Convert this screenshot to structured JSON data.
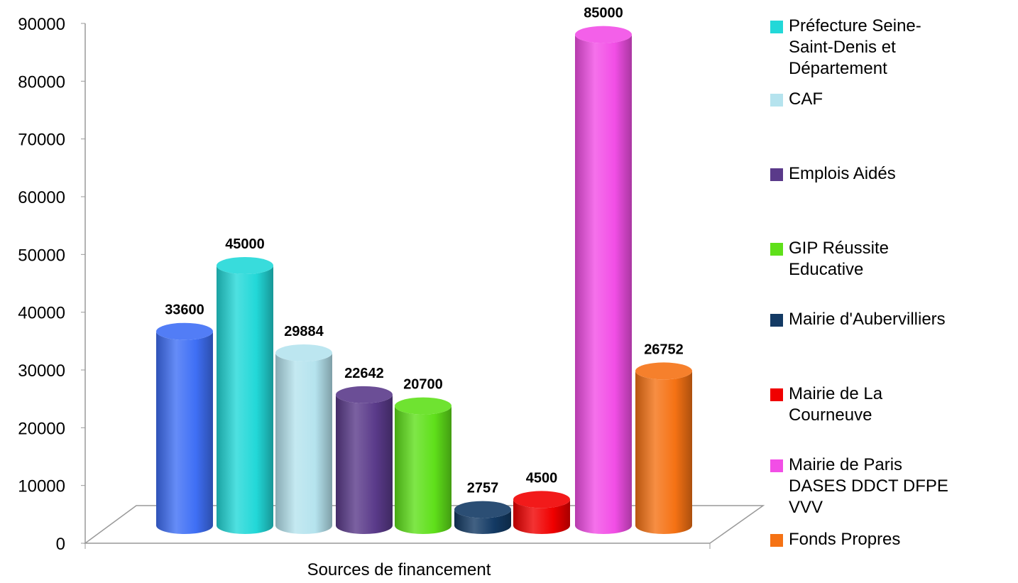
{
  "chart_data": {
    "type": "bar",
    "x_label": "Sources de financement",
    "ylim": [
      0,
      90000
    ],
    "yticks": [
      0,
      10000,
      20000,
      30000,
      40000,
      50000,
      60000,
      70000,
      80000,
      90000
    ],
    "series": [
      {
        "name": null,
        "color": "#3f6ff5",
        "values": [
          33600
        ]
      },
      {
        "name": "Préfecture Seine-Saint-Denis et Département",
        "color": "#22d8d8",
        "values": [
          45000
        ]
      },
      {
        "name": "CAF",
        "color": "#b5e3ee",
        "values": [
          29884
        ]
      },
      {
        "name": "Emplois Aidés",
        "color": "#5a3a8a",
        "values": [
          22642
        ]
      },
      {
        "name": "GIP Réussite Educative",
        "color": "#5fe01a",
        "values": [
          20700
        ]
      },
      {
        "name": "Mairie d'Aubervilliers",
        "color": "#133a64",
        "values": [
          2757
        ]
      },
      {
        "name": "Mairie de La Courneuve",
        "color": "#f00000",
        "values": [
          4500
        ]
      },
      {
        "name": "Mairie de Paris  DASES DDCT DFPE VVV",
        "color": "#f24ee6",
        "values": [
          85000
        ]
      },
      {
        "name": "Fonds Propres",
        "color": "#f57214",
        "values": [
          26752
        ]
      }
    ]
  }
}
